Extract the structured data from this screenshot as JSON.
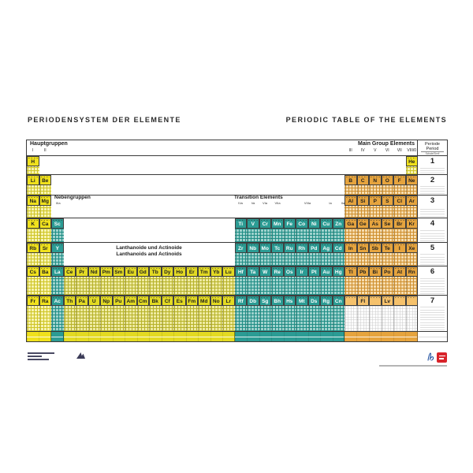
{
  "titles": {
    "de": "PERIODENSYSTEM DER ELEMENTE",
    "en": "PERIODIC TABLE OF THE ELEMENTS"
  },
  "header": {
    "hauptgruppen": "Hauptgruppen",
    "main_group_elements": "Main Group Elements",
    "left_groups": [
      "I",
      "II"
    ],
    "right_groups": [
      "III",
      "IV",
      "V",
      "VI",
      "VII",
      "VIII/0"
    ],
    "periode": "Periode",
    "period": "Period",
    "shell": "Schale/Shell"
  },
  "subgroups": {
    "nebengruppen": "Nebengruppen",
    "left_label": "IIIa",
    "transition_elements": "Transition Elements",
    "labels": [
      "IVa",
      "Va",
      "VIa",
      "VIIa",
      "VIIIa",
      "Ia",
      "IIa"
    ]
  },
  "f_block_note": {
    "de": "Lanthanoide und Actinoide",
    "en": "Lanthanoids and Actinoids"
  },
  "colors": {
    "s_block": "#f0e11c",
    "d_block": "#2b9c94",
    "f_block": "#e3da22",
    "p_block": "#e6a43e",
    "p_block_row7": "#f5c16b"
  },
  "periods": [
    {
      "n": "1",
      "elements": [
        {
          "sym": "H",
          "col": 1,
          "b": "s"
        },
        {
          "sym": "He",
          "col": 32,
          "b": "s"
        }
      ]
    },
    {
      "n": "2",
      "elements": [
        {
          "sym": "Li",
          "col": 1,
          "b": "s"
        },
        {
          "sym": "Be",
          "col": 2,
          "b": "s"
        },
        {
          "sym": "B",
          "col": 27,
          "b": "p"
        },
        {
          "sym": "C",
          "col": 28,
          "b": "p"
        },
        {
          "sym": "N",
          "col": 29,
          "b": "p"
        },
        {
          "sym": "O",
          "col": 30,
          "b": "p"
        },
        {
          "sym": "F",
          "col": 31,
          "b": "p"
        },
        {
          "sym": "Ne",
          "col": 32,
          "b": "p"
        }
      ]
    },
    {
      "n": "3",
      "elements": [
        {
          "sym": "Na",
          "col": 1,
          "b": "s"
        },
        {
          "sym": "Mg",
          "col": 2,
          "b": "s"
        },
        {
          "sym": "Al",
          "col": 27,
          "b": "p"
        },
        {
          "sym": "Si",
          "col": 28,
          "b": "p"
        },
        {
          "sym": "P",
          "col": 29,
          "b": "p"
        },
        {
          "sym": "S",
          "col": 30,
          "b": "p"
        },
        {
          "sym": "Cl",
          "col": 31,
          "b": "p"
        },
        {
          "sym": "Ar",
          "col": 32,
          "b": "p"
        }
      ]
    },
    {
      "n": "4",
      "elements": [
        {
          "sym": "K",
          "col": 1,
          "b": "s"
        },
        {
          "sym": "Ca",
          "col": 2,
          "b": "s"
        },
        {
          "sym": "Sc",
          "col": 3,
          "b": "d"
        },
        {
          "sym": "Ti",
          "col": 18,
          "b": "d"
        },
        {
          "sym": "V",
          "col": 19,
          "b": "d"
        },
        {
          "sym": "Cr",
          "col": 20,
          "b": "d"
        },
        {
          "sym": "Mn",
          "col": 21,
          "b": "d"
        },
        {
          "sym": "Fe",
          "col": 22,
          "b": "d"
        },
        {
          "sym": "Co",
          "col": 23,
          "b": "d"
        },
        {
          "sym": "Ni",
          "col": 24,
          "b": "d"
        },
        {
          "sym": "Cu",
          "col": 25,
          "b": "d"
        },
        {
          "sym": "Zn",
          "col": 26,
          "b": "d"
        },
        {
          "sym": "Ga",
          "col": 27,
          "b": "p"
        },
        {
          "sym": "Ge",
          "col": 28,
          "b": "p"
        },
        {
          "sym": "As",
          "col": 29,
          "b": "p"
        },
        {
          "sym": "Se",
          "col": 30,
          "b": "p"
        },
        {
          "sym": "Br",
          "col": 31,
          "b": "p"
        },
        {
          "sym": "Kr",
          "col": 32,
          "b": "p"
        }
      ]
    },
    {
      "n": "5",
      "elements": [
        {
          "sym": "Rb",
          "col": 1,
          "b": "s"
        },
        {
          "sym": "Sr",
          "col": 2,
          "b": "s"
        },
        {
          "sym": "Y",
          "col": 3,
          "b": "d"
        },
        {
          "sym": "Zr",
          "col": 18,
          "b": "d"
        },
        {
          "sym": "Nb",
          "col": 19,
          "b": "d"
        },
        {
          "sym": "Mo",
          "col": 20,
          "b": "d"
        },
        {
          "sym": "Tc",
          "col": 21,
          "b": "d"
        },
        {
          "sym": "Ru",
          "col": 22,
          "b": "d"
        },
        {
          "sym": "Rh",
          "col": 23,
          "b": "d"
        },
        {
          "sym": "Pd",
          "col": 24,
          "b": "d"
        },
        {
          "sym": "Ag",
          "col": 25,
          "b": "d"
        },
        {
          "sym": "Cd",
          "col": 26,
          "b": "d"
        },
        {
          "sym": "In",
          "col": 27,
          "b": "p"
        },
        {
          "sym": "Sn",
          "col": 28,
          "b": "p"
        },
        {
          "sym": "Sb",
          "col": 29,
          "b": "p"
        },
        {
          "sym": "Te",
          "col": 30,
          "b": "p"
        },
        {
          "sym": "I",
          "col": 31,
          "b": "p"
        },
        {
          "sym": "Xe",
          "col": 32,
          "b": "p"
        }
      ]
    },
    {
      "n": "6",
      "elements": [
        {
          "sym": "Cs",
          "col": 1,
          "b": "s"
        },
        {
          "sym": "Ba",
          "col": 2,
          "b": "s"
        },
        {
          "sym": "La",
          "col": 3,
          "b": "d"
        },
        {
          "sym": "Ce",
          "col": 4,
          "b": "f"
        },
        {
          "sym": "Pr",
          "col": 5,
          "b": "f"
        },
        {
          "sym": "Nd",
          "col": 6,
          "b": "f"
        },
        {
          "sym": "Pm",
          "col": 7,
          "b": "f"
        },
        {
          "sym": "Sm",
          "col": 8,
          "b": "f"
        },
        {
          "sym": "Eu",
          "col": 9,
          "b": "f"
        },
        {
          "sym": "Gd",
          "col": 10,
          "b": "f"
        },
        {
          "sym": "Tb",
          "col": 11,
          "b": "f"
        },
        {
          "sym": "Dy",
          "col": 12,
          "b": "f"
        },
        {
          "sym": "Ho",
          "col": 13,
          "b": "f"
        },
        {
          "sym": "Er",
          "col": 14,
          "b": "f"
        },
        {
          "sym": "Tm",
          "col": 15,
          "b": "f"
        },
        {
          "sym": "Yb",
          "col": 16,
          "b": "f"
        },
        {
          "sym": "Lu",
          "col": 17,
          "b": "f"
        },
        {
          "sym": "Hf",
          "col": 18,
          "b": "d"
        },
        {
          "sym": "Ta",
          "col": 19,
          "b": "d"
        },
        {
          "sym": "W",
          "col": 20,
          "b": "d"
        },
        {
          "sym": "Re",
          "col": 21,
          "b": "d"
        },
        {
          "sym": "Os",
          "col": 22,
          "b": "d"
        },
        {
          "sym": "Ir",
          "col": 23,
          "b": "d"
        },
        {
          "sym": "Pt",
          "col": 24,
          "b": "d"
        },
        {
          "sym": "Au",
          "col": 25,
          "b": "d"
        },
        {
          "sym": "Hg",
          "col": 26,
          "b": "d"
        },
        {
          "sym": "Tl",
          "col": 27,
          "b": "p"
        },
        {
          "sym": "Pb",
          "col": 28,
          "b": "p"
        },
        {
          "sym": "Bi",
          "col": 29,
          "b": "p"
        },
        {
          "sym": "Po",
          "col": 30,
          "b": "p"
        },
        {
          "sym": "At",
          "col": 31,
          "b": "p"
        },
        {
          "sym": "Rn",
          "col": 32,
          "b": "p"
        }
      ]
    },
    {
      "n": "7",
      "elements": [
        {
          "sym": "Fr",
          "col": 1,
          "b": "s"
        },
        {
          "sym": "Ra",
          "col": 2,
          "b": "s"
        },
        {
          "sym": "Ac",
          "col": 3,
          "b": "d"
        },
        {
          "sym": "Th",
          "col": 4,
          "b": "f"
        },
        {
          "sym": "Pa",
          "col": 5,
          "b": "f"
        },
        {
          "sym": "U",
          "col": 6,
          "b": "f"
        },
        {
          "sym": "Np",
          "col": 7,
          "b": "f"
        },
        {
          "sym": "Pu",
          "col": 8,
          "b": "f"
        },
        {
          "sym": "Am",
          "col": 9,
          "b": "f"
        },
        {
          "sym": "Cm",
          "col": 10,
          "b": "f"
        },
        {
          "sym": "Bk",
          "col": 11,
          "b": "f"
        },
        {
          "sym": "Cf",
          "col": 12,
          "b": "f"
        },
        {
          "sym": "Es",
          "col": 13,
          "b": "f"
        },
        {
          "sym": "Fm",
          "col": 14,
          "b": "f"
        },
        {
          "sym": "Md",
          "col": 15,
          "b": "f"
        },
        {
          "sym": "No",
          "col": 16,
          "b": "f"
        },
        {
          "sym": "Lr",
          "col": 17,
          "b": "f"
        },
        {
          "sym": "Rf",
          "col": 18,
          "b": "d"
        },
        {
          "sym": "Db",
          "col": 19,
          "b": "d"
        },
        {
          "sym": "Sg",
          "col": 20,
          "b": "d"
        },
        {
          "sym": "Bh",
          "col": 21,
          "b": "d"
        },
        {
          "sym": "Hs",
          "col": 22,
          "b": "d"
        },
        {
          "sym": "Mt",
          "col": 23,
          "b": "d"
        },
        {
          "sym": "Ds",
          "col": 24,
          "b": "d"
        },
        {
          "sym": "Rg",
          "col": 25,
          "b": "d"
        },
        {
          "sym": "Cn",
          "col": 26,
          "b": "d"
        },
        {
          "sym": "",
          "col": 27,
          "b": "p7"
        },
        {
          "sym": "Fl",
          "col": 28,
          "b": "p7"
        },
        {
          "sym": "",
          "col": 29,
          "b": "p7"
        },
        {
          "sym": "Lv",
          "col": 30,
          "b": "p7"
        },
        {
          "sym": "",
          "col": 31,
          "b": "p7"
        },
        {
          "sym": "",
          "col": 32,
          "b": "p7"
        }
      ]
    }
  ]
}
